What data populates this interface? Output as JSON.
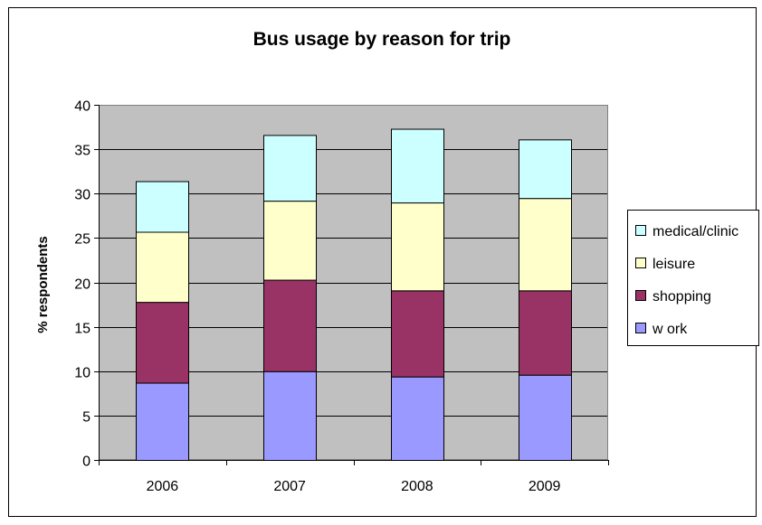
{
  "chart_data": {
    "type": "bar",
    "stacked": true,
    "title": "Bus usage by reason for trip",
    "xlabel": "",
    "ylabel": "% respondents",
    "categories": [
      "2006",
      "2007",
      "2008",
      "2009"
    ],
    "ylim": [
      0,
      40
    ],
    "yticks": [
      0,
      5,
      10,
      15,
      20,
      25,
      30,
      35,
      40
    ],
    "ytick_labels": [
      "0",
      "5",
      "10",
      "15",
      "20",
      "25",
      "30",
      "35",
      "40"
    ],
    "grid": true,
    "legend_position": "right",
    "series": [
      {
        "name": "w ork",
        "color": "#9999ff",
        "values": [
          8.7,
          10.0,
          9.4,
          9.6
        ]
      },
      {
        "name": "shopping",
        "color": "#993366",
        "values": [
          9.1,
          10.3,
          9.7,
          9.5
        ]
      },
      {
        "name": "leisure",
        "color": "#ffffcc",
        "values": [
          7.9,
          8.9,
          9.9,
          10.4
        ]
      },
      {
        "name": "medical/clinic",
        "color": "#ccffff",
        "values": [
          5.7,
          7.4,
          8.3,
          6.6
        ]
      }
    ],
    "legend_order": [
      "medical/clinic",
      "leisure",
      "shopping",
      "w ork"
    ],
    "plot_background": "#c0c0c0",
    "frame_color": "#000000"
  }
}
